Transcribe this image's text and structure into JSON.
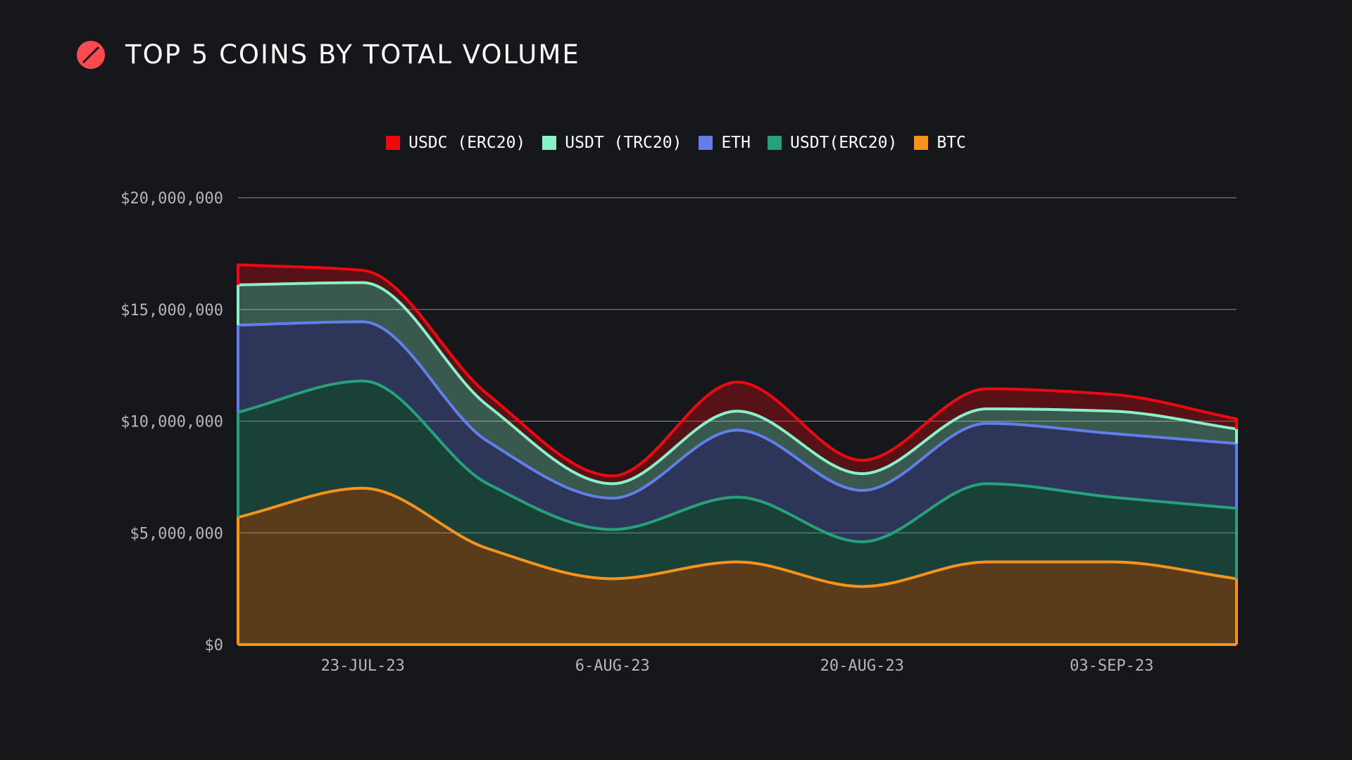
{
  "header": {
    "title": "TOP 5 COINS BY TOTAL VOLUME",
    "logo_icon": "slashed-circle-logo",
    "logo_color": "#ff4a4f"
  },
  "chart_data": {
    "type": "area",
    "stacked": true,
    "title": "TOP 5 COINS BY TOTAL VOLUME",
    "xlabel": "",
    "ylabel": "",
    "ylim": [
      0,
      20000000
    ],
    "y_ticks": [
      0,
      5000000,
      10000000,
      15000000,
      20000000
    ],
    "y_tick_labels": [
      "$0",
      "$5,000,000",
      "$10,000,000",
      "$15,000,000",
      "$20,000,000"
    ],
    "x": [
      "16-Jul-23",
      "23-Jul-23",
      "30-Jul-23",
      "6-Aug-23",
      "13-Aug-23",
      "20-Aug-23",
      "27-Aug-23",
      "03-Sep-23",
      "10-Sep-23"
    ],
    "x_tick_labels": [
      "23-JUL-23",
      "6-AUG-23",
      "20-AUG-23",
      "03-SEP-23"
    ],
    "grid": true,
    "legend_position": "top-center",
    "series": [
      {
        "name": "BTC",
        "color": "#f7931a",
        "values": [
          5700000,
          7000000,
          4300000,
          2950000,
          3700000,
          2600000,
          3700000,
          3700000,
          2950000
        ]
      },
      {
        "name": "USDT(ERC20)",
        "color": "#26a17b",
        "values": [
          4700000,
          4800000,
          2900000,
          2200000,
          2900000,
          2000000,
          3500000,
          2900000,
          3150000
        ]
      },
      {
        "name": "ETH",
        "color": "#627eea",
        "values": [
          3900000,
          2650000,
          1900000,
          1400000,
          3000000,
          2300000,
          2700000,
          2850000,
          2900000
        ]
      },
      {
        "name": "USDT (TRC20)",
        "color": "#8af0c8",
        "values": [
          1800000,
          1750000,
          1600000,
          650000,
          850000,
          750000,
          650000,
          1000000,
          650000
        ]
      },
      {
        "name": "USDC (ERC20)",
        "color": "#f0070f",
        "values": [
          900000,
          550000,
          500000,
          350000,
          1300000,
          600000,
          900000,
          750000,
          450000
        ]
      }
    ]
  }
}
